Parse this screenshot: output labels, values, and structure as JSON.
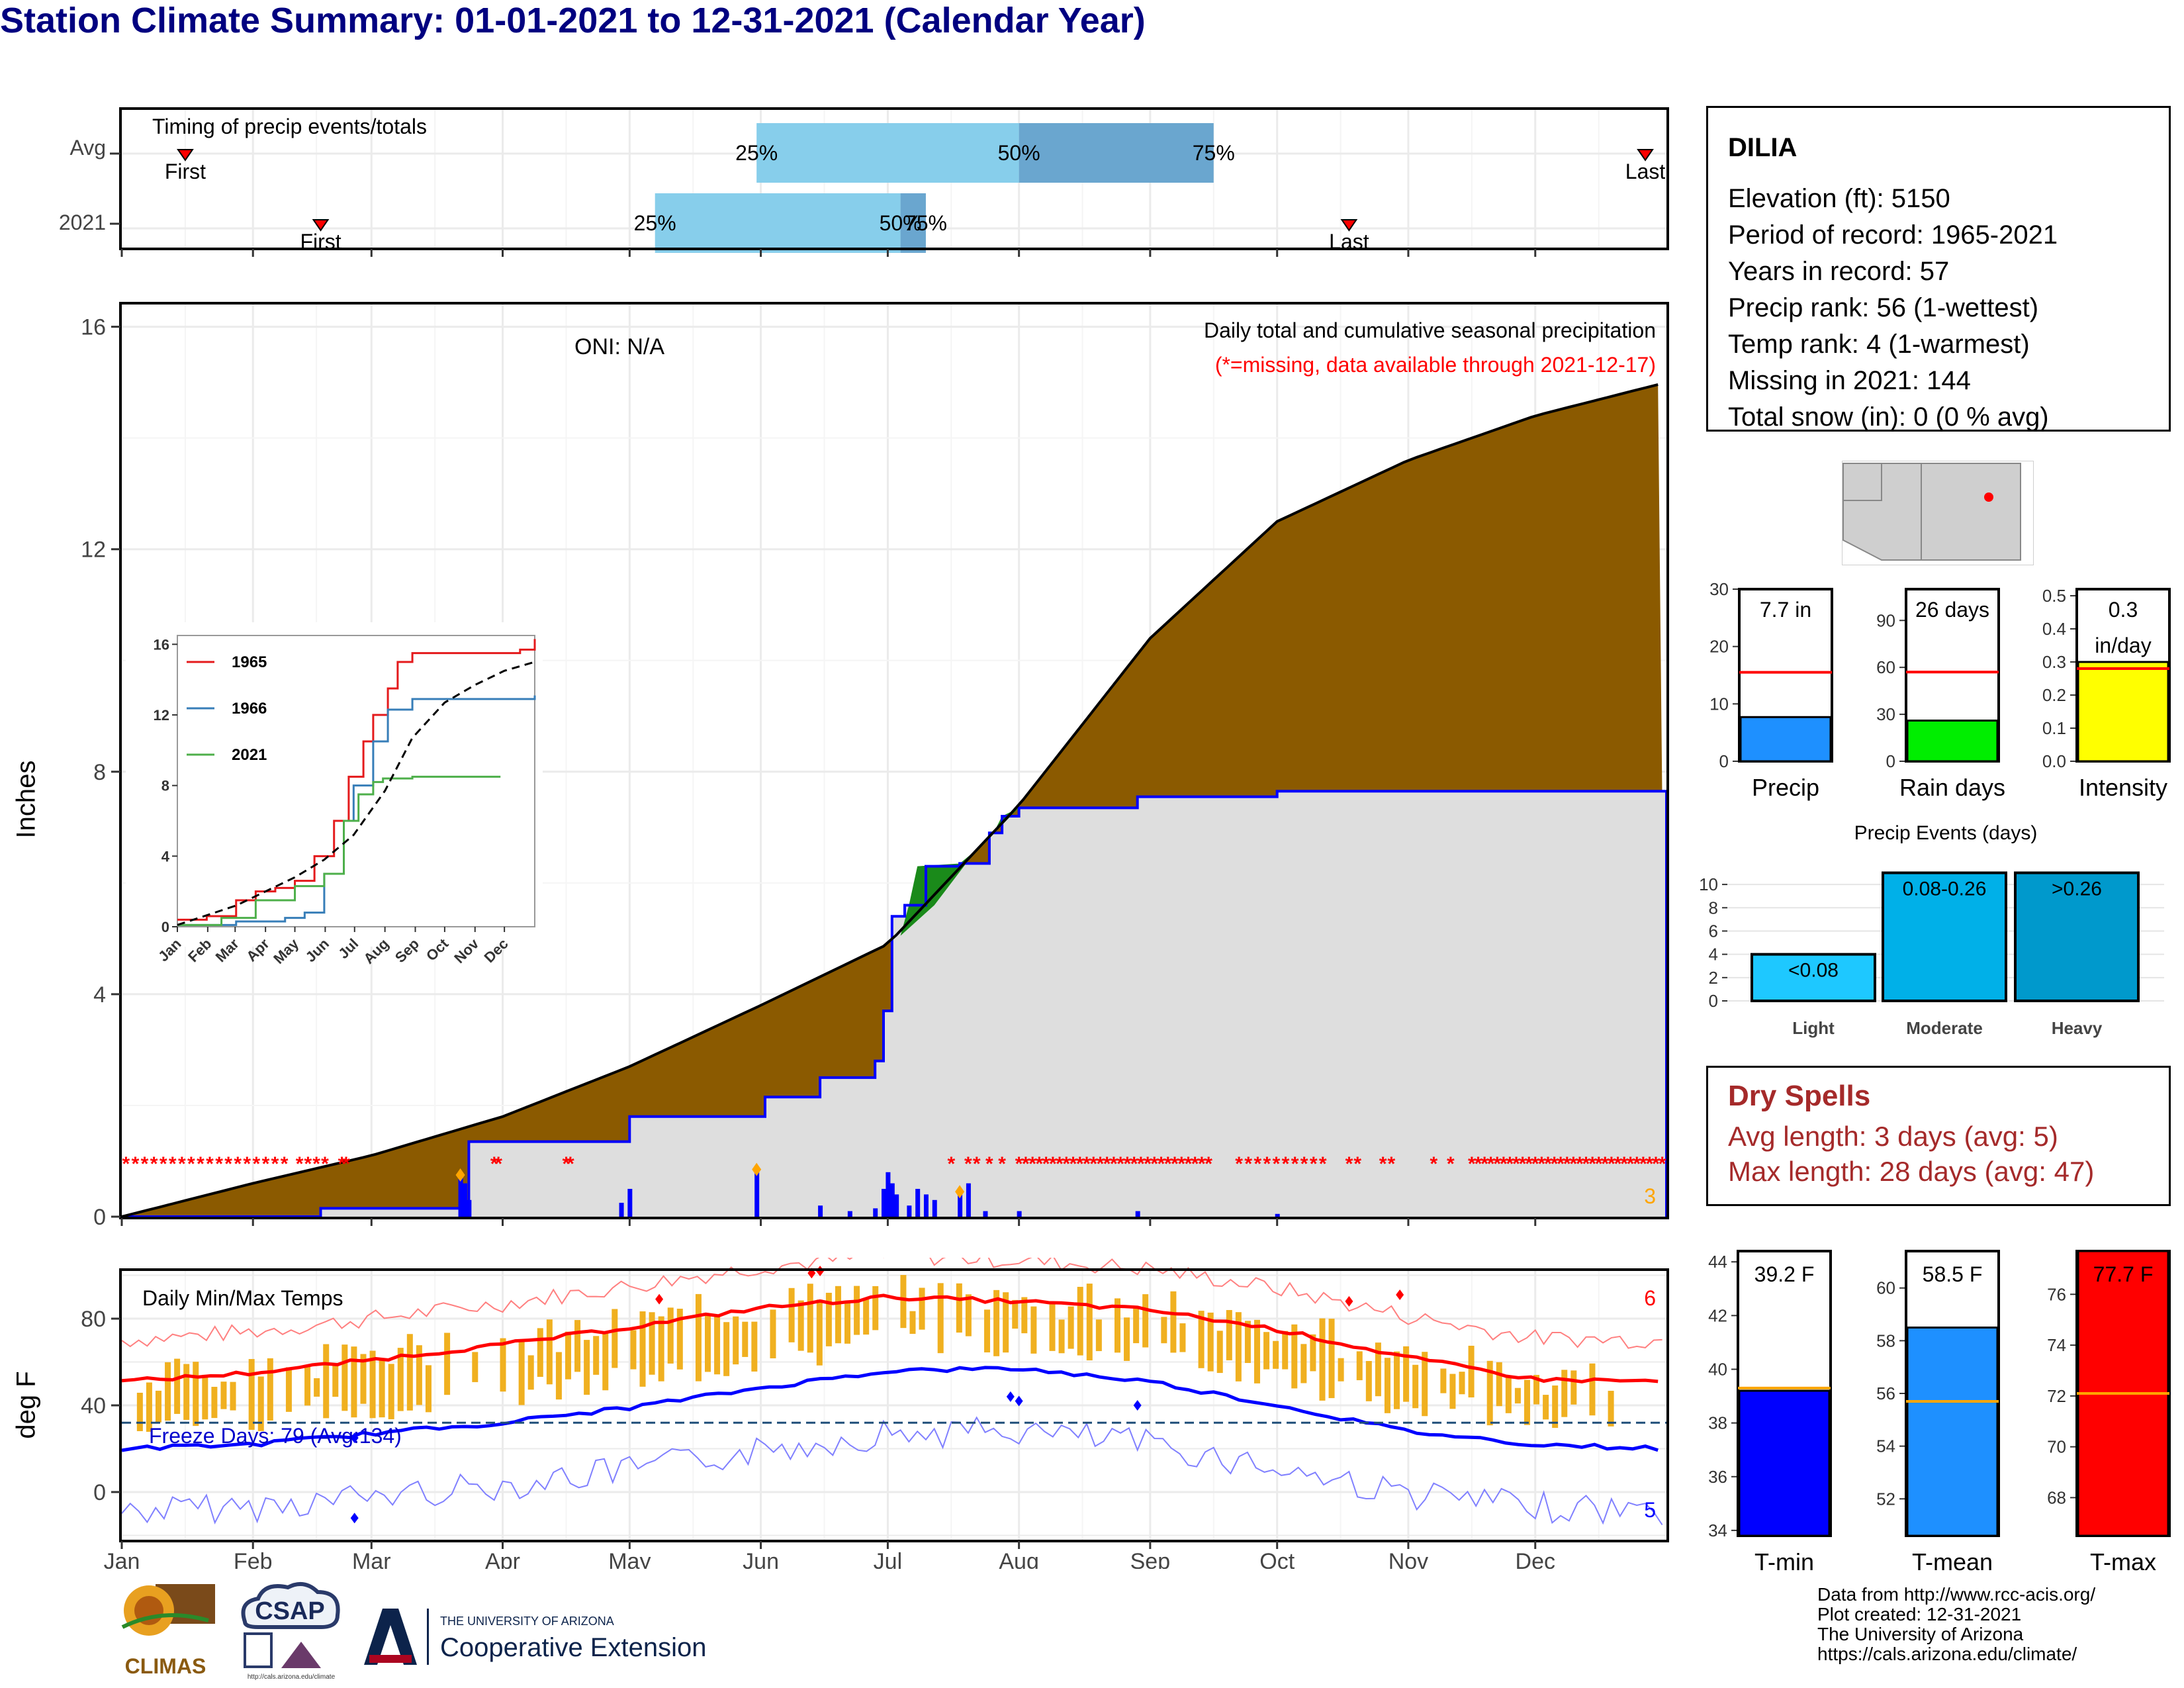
{
  "title": "Station Climate Summary: 01-01-2021 to 12-31-2021 (Calendar Year)",
  "timing_panel": {
    "title": "Timing of precip events/totals",
    "rows": [
      {
        "label": "Avg",
        "first_label": "First",
        "last_label": "Last",
        "first_doy": 15,
        "last_doy": 360,
        "p25": 150,
        "p50": 212,
        "p75": 258,
        "p25_label": "25%",
        "p50_label": "50%",
        "p75_label": "75%"
      },
      {
        "label": "2021",
        "first_label": "First",
        "last_label": "Last",
        "first_doy": 47,
        "last_doy": 290,
        "p25": 126,
        "p50": 184,
        "p75": 190,
        "p25_label": "25%",
        "p50_label": "50%",
        "p75_label": "75%"
      }
    ]
  },
  "info_box": {
    "station": "DILIA",
    "lines": [
      "Elevation (ft): 5150",
      "Period of record: 1965-2021",
      "Years in record: 57",
      "Precip rank: 56 (1-wettest)",
      "Temp rank: 4 (1-warmest)",
      "Missing in 2021: 144",
      "Total snow (in): 0 (0 % avg)"
    ]
  },
  "precip_panel": {
    "ylabel": "Inches",
    "oni": "ONI: N/A",
    "subtitle": "Daily total and cumulative seasonal precipitation",
    "missing_note": "(*=missing, data available through 2021-12-17)",
    "corner_count": "3",
    "yticks": [
      "0",
      "4",
      "8",
      "12",
      "16"
    ],
    "colors": {
      "avg_fill": "#8b5a00",
      "obs_fill": "#dedede",
      "above_fill": "#1a8a1a",
      "bars": "#0000ff",
      "missing": "#ff0000"
    }
  },
  "inset": {
    "legend": [
      "1965",
      "1966",
      "2021"
    ],
    "yticks": [
      "0",
      "4",
      "8",
      "12",
      "16"
    ],
    "months": [
      "Jan",
      "Feb",
      "Mar",
      "Apr",
      "May",
      "Jun",
      "Jul",
      "Aug",
      "Sep",
      "Oct",
      "Nov",
      "Dec"
    ]
  },
  "temp_panel": {
    "ylabel": "deg F",
    "title": "Daily Min/Max Temps",
    "freeze_text": "Freeze Days: 79 (Avg:134)",
    "count_top": "6",
    "count_bottom": "5",
    "yticks": [
      "0",
      "40",
      "80"
    ]
  },
  "months": [
    "Jan",
    "Feb",
    "Mar",
    "Apr",
    "May",
    "Jun",
    "Jul",
    "Aug",
    "Sep",
    "Oct",
    "Nov",
    "Dec"
  ],
  "small_bars": [
    {
      "label": "Precip",
      "value_text": "7.7 in",
      "value": 7.7,
      "avg": 15.5,
      "ymax": 30,
      "yticks": [
        "0",
        "10",
        "20",
        "30"
      ],
      "color": "#1e90ff"
    },
    {
      "label": "Rain days",
      "value_text": "26 days",
      "value": 26,
      "avg": 57,
      "ymax": 110,
      "yticks": [
        "0",
        "30",
        "60",
        "90"
      ],
      "color": "#00ee00"
    },
    {
      "label": "Intensity",
      "value_text": "0.3",
      "value_text2": "in/day",
      "value": 0.3,
      "avg": 0.28,
      "ymax": 0.52,
      "yticks": [
        "0.0",
        "0.1",
        "0.2",
        "0.3",
        "0.4",
        "0.5"
      ],
      "color": "#ffff00"
    }
  ],
  "precip_events": {
    "title": "Precip Events (days)",
    "yticks": [
      "0",
      "2",
      "4",
      "6",
      "8",
      "10"
    ],
    "bars": [
      {
        "category": "Light",
        "label": "<0.08",
        "value": 4
      },
      {
        "category": "Moderate",
        "label": "0.08-0.26",
        "value": 11
      },
      {
        "category": "Heavy",
        "label": ">0.26",
        "value": 11
      }
    ]
  },
  "dry_spells": {
    "title": "Dry Spells",
    "avg_line": "Avg length: 3 days (avg: 5)",
    "max_line": "Max length: 28 days (avg: 47)"
  },
  "temp_bars": [
    {
      "label": "T-min",
      "value_text": "39.2 F",
      "value": 39.2,
      "avg": 39.3,
      "ymin": 33.8,
      "ymax": 44.4,
      "yticks": [
        "34",
        "36",
        "38",
        "40",
        "42",
        "44"
      ],
      "color": "#0000ff"
    },
    {
      "label": "T-mean",
      "value_text": "58.5 F",
      "value": 58.5,
      "avg": 55.7,
      "ymin": 50.6,
      "ymax": 61.4,
      "yticks": [
        "52",
        "54",
        "56",
        "58",
        "60"
      ],
      "color": "#1e90ff"
    },
    {
      "label": "T-max",
      "value_text": "77.7 F",
      "value": 77.7,
      "avg": 72.1,
      "ymin": 66.5,
      "ymax": 77.7,
      "yticks": [
        "68",
        "70",
        "72",
        "74",
        "76"
      ],
      "color": "#ff0000"
    }
  ],
  "credits": [
    "Data from http://www.rcc-acis.org/",
    "Plot created: 12-31-2021",
    "The University of Arizona",
    "https://cals.arizona.edu/climate/"
  ],
  "logos": {
    "climas": "CLIMAS",
    "csap": "CSAP",
    "ua_small": "THE UNIVERSITY OF ARIZONA",
    "ua_big": "Cooperative Extension",
    "csap_url": "http://cals.arizona.edu/climate"
  },
  "chart_data": [
    {
      "type": "bar",
      "title": "Timing of precip events/totals",
      "categories": [
        "Avg",
        "2021"
      ],
      "series": [
        {
          "name": "25%",
          "values": [
            150,
            126
          ]
        },
        {
          "name": "50%",
          "values": [
            212,
            184
          ]
        },
        {
          "name": "75%",
          "values": [
            258,
            190
          ]
        }
      ]
    },
    {
      "type": "area",
      "title": "Daily total and cumulative seasonal precipitation",
      "ylabel": "Inches",
      "ylim": [
        0,
        16
      ],
      "x": [
        "Jan",
        "Feb",
        "Mar",
        "Apr",
        "May",
        "Jun",
        "Jul",
        "Aug",
        "Sep",
        "Oct",
        "Nov",
        "Dec",
        "Dec-31"
      ],
      "series": [
        {
          "name": "avg",
          "values": [
            0,
            0.6,
            1.1,
            1.8,
            2.7,
            3.8,
            4.9,
            7.4,
            10.4,
            12.5,
            13.6,
            14.4,
            15.0
          ]
        },
        {
          "name": "2021",
          "values": [
            0,
            0.15,
            0.15,
            1.35,
            1.35,
            2.15,
            5.6,
            7.4,
            7.55,
            7.65,
            7.65,
            7.65,
            7.65
          ]
        }
      ]
    },
    {
      "type": "line",
      "title": "Daily Min/Max Temps",
      "ylabel": "deg F",
      "ylim": [
        -22,
        102
      ],
      "x": [
        "Jan",
        "Feb",
        "Mar",
        "Apr",
        "May",
        "Jun",
        "Jul",
        "Aug",
        "Sep",
        "Oct",
        "Nov",
        "Dec",
        "Dec-31"
      ],
      "series": [
        {
          "name": "avg max",
          "values": [
            51,
            55,
            61,
            68,
            76,
            85,
            90,
            88,
            84,
            75,
            62,
            52,
            51
          ]
        },
        {
          "name": "avg min",
          "values": [
            20,
            22,
            27,
            32,
            39,
            48,
            56,
            57,
            51,
            40,
            28,
            22,
            20
          ]
        }
      ]
    },
    {
      "type": "bar",
      "title": "Precip Events (days)",
      "categories": [
        "Light",
        "Moderate",
        "Heavy"
      ],
      "values": [
        4,
        11,
        11
      ]
    },
    {
      "type": "bar",
      "categories": [
        "Precip",
        "Rain days",
        "Intensity"
      ],
      "values": [
        7.7,
        26,
        0.3
      ]
    },
    {
      "type": "bar",
      "categories": [
        "T-min",
        "T-mean",
        "T-max"
      ],
      "values": [
        39.2,
        58.5,
        77.7
      ]
    }
  ]
}
